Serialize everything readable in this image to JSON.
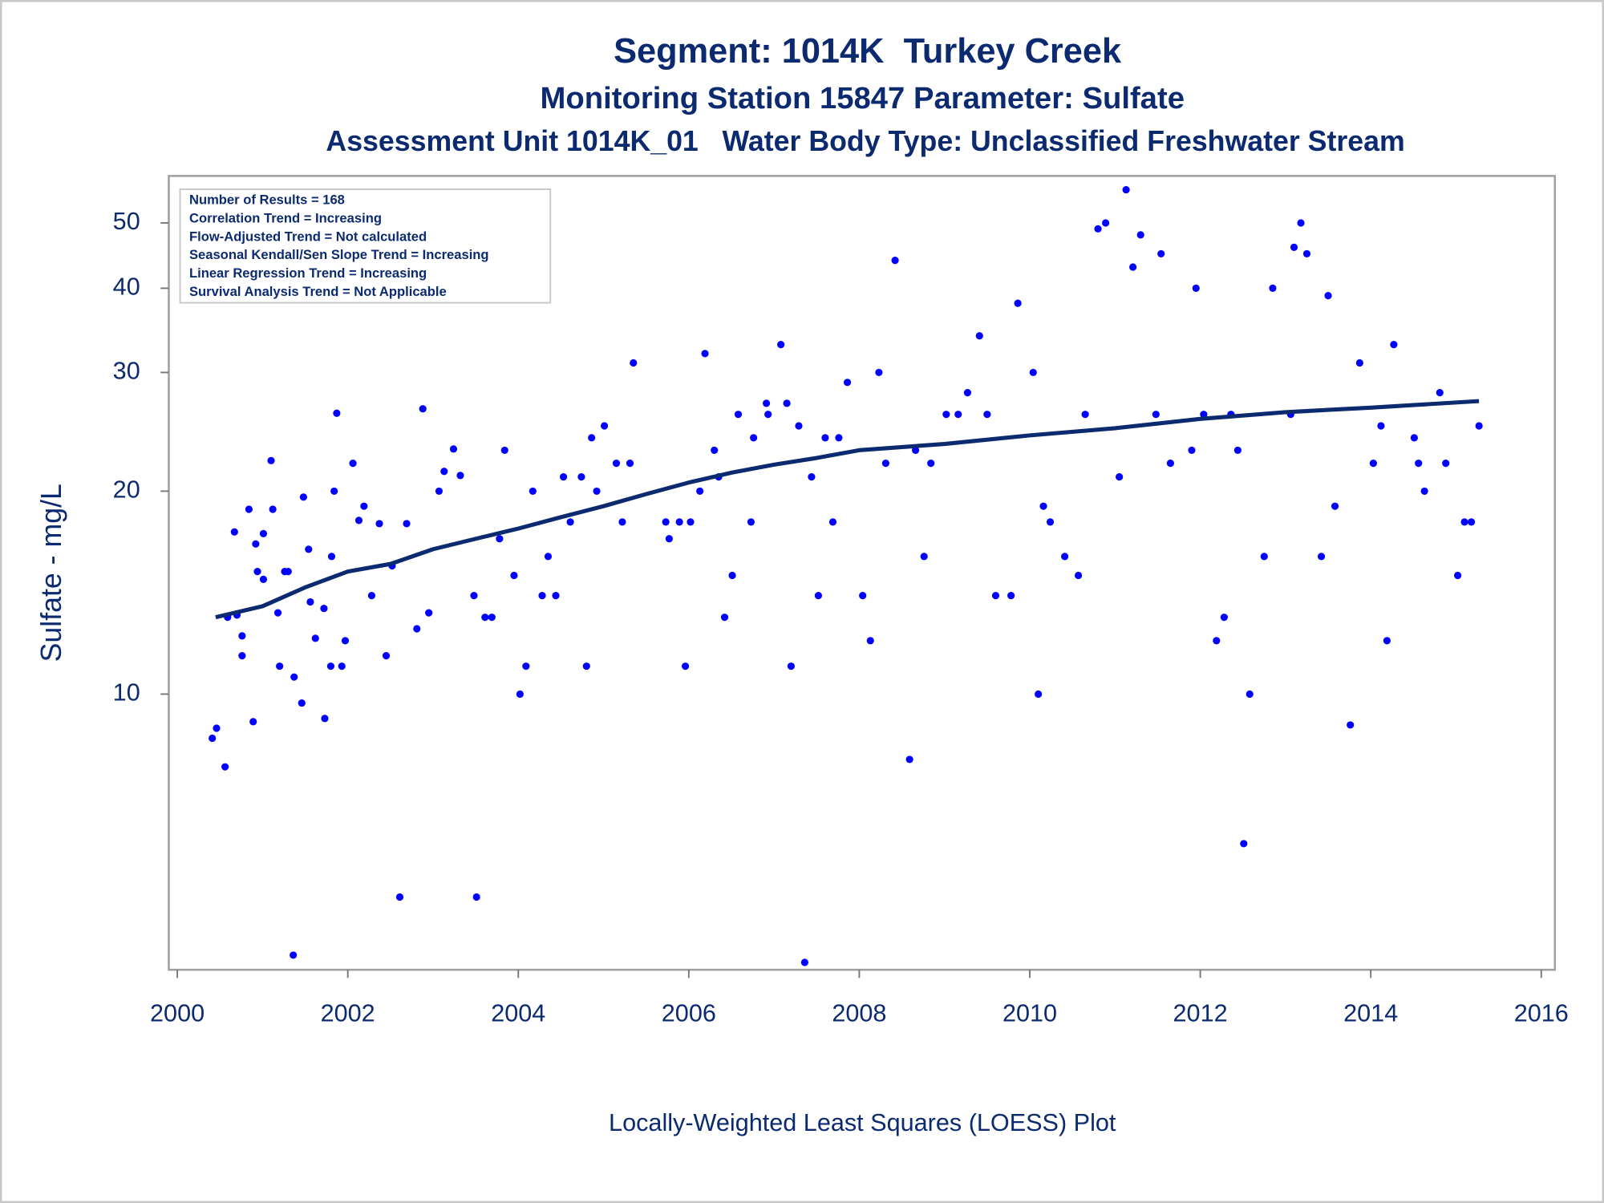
{
  "chart_data": {
    "type": "scatter",
    "titles": [
      "Segment: 1014K  Turkey Creek",
      "Monitoring Station 15847 Parameter: Sulfate",
      "Assessment Unit 1014K_01   Water Body Type: Unclassified Freshwater Stream"
    ],
    "ylabel": "Sulfate - mg/L",
    "xlabel": "Locally-Weighted Least Squares (LOESS) Plot",
    "annotations": [
      "Number of Results = 168",
      "Correlation Trend = Increasing",
      "Flow-Adjusted Trend = Not calculated",
      "Seasonal Kendall/Sen Slope Trend = Increasing",
      "Linear Regression Trend = Increasing",
      "Survival Analysis Trend = Not Applicable"
    ],
    "ylog": true,
    "xlim": [
      1999.9,
      2016.16
    ],
    "ylim": [
      3.9,
      58.7
    ],
    "xticks": [
      2000,
      2002,
      2004,
      2006,
      2008,
      2010,
      2012,
      2014,
      2016
    ],
    "yticks": [
      10,
      20,
      30,
      40,
      50
    ],
    "series": [
      {
        "type": "scatter",
        "color": "#0000ff",
        "x": [
          2000.41,
          2000.46,
          2000.56,
          2000.59,
          2000.67,
          2000.7,
          2000.76,
          2000.76,
          2000.84,
          2000.89,
          2000.92,
          2000.94,
          2001.01,
          2001.01,
          2001.1,
          2001.12,
          2001.18,
          2001.2,
          2001.26,
          2001.3,
          2001.36,
          2001.37,
          2001.46,
          2001.48,
          2001.54,
          2001.56,
          2001.62,
          2001.72,
          2001.73,
          2001.8,
          2001.81,
          2001.84,
          2001.87,
          2001.93,
          2001.97,
          2002.06,
          2002.13,
          2002.19,
          2002.28,
          2002.37,
          2002.45,
          2002.52,
          2002.61,
          2002.69,
          2002.81,
          2002.88,
          2002.95,
          2003.07,
          2003.13,
          2003.24,
          2003.32,
          2003.48,
          2003.51,
          2003.61,
          2003.69,
          2003.78,
          2003.84,
          2003.95,
          2004.02,
          2004.09,
          2004.17,
          2004.28,
          2004.35,
          2004.44,
          2004.53,
          2004.61,
          2004.74,
          2004.8,
          2004.86,
          2004.92,
          2005.01,
          2005.15,
          2005.22,
          2005.31,
          2005.35,
          2005.73,
          2005.77,
          2005.89,
          2005.96,
          2006.02,
          2006.13,
          2006.19,
          2006.3,
          2006.35,
          2006.42,
          2006.51,
          2006.58,
          2006.73,
          2006.76,
          2006.91,
          2006.93,
          2007.08,
          2007.15,
          2007.2,
          2007.29,
          2007.36,
          2007.44,
          2007.52,
          2007.6,
          2007.69,
          2007.76,
          2007.86,
          2008.04,
          2008.13,
          2008.23,
          2008.31,
          2008.42,
          2008.59,
          2008.66,
          2008.76,
          2008.84,
          2009.02,
          2009.16,
          2009.27,
          2009.41,
          2009.5,
          2009.6,
          2009.78,
          2009.86,
          2010.04,
          2010.1,
          2010.16,
          2010.24,
          2010.41,
          2010.57,
          2010.65,
          2010.8,
          2010.89,
          2011.05,
          2011.13,
          2011.21,
          2011.3,
          2011.48,
          2011.54,
          2011.65,
          2011.9,
          2011.95,
          2012.04,
          2012.19,
          2012.28,
          2012.36,
          2012.44,
          2012.51,
          2012.58,
          2012.75,
          2012.85,
          2013.06,
          2013.1,
          2013.18,
          2013.25,
          2013.42,
          2013.5,
          2013.58,
          2013.76,
          2013.87,
          2014.03,
          2014.12,
          2014.19,
          2014.27,
          2014.51,
          2014.56,
          2014.63,
          2014.81,
          2014.88,
          2015.02,
          2015.1,
          2015.18,
          2015.27
        ],
        "values": [
          8.6,
          8.9,
          7.8,
          13,
          17.4,
          13.1,
          12.2,
          11.4,
          18.8,
          9.1,
          16.7,
          15.2,
          14.8,
          17.3,
          22.2,
          18.8,
          13.2,
          11,
          15.2,
          15.2,
          4.1,
          10.6,
          9.7,
          19.6,
          16.4,
          13.7,
          12.1,
          13.4,
          9.2,
          11,
          16,
          20,
          26.1,
          11,
          12,
          22,
          18.1,
          19,
          14,
          17.9,
          11.4,
          15.5,
          5,
          17.9,
          12.5,
          26.5,
          13.2,
          20,
          21.4,
          23.1,
          21.1,
          14,
          5,
          13,
          13,
          17,
          23,
          15,
          10,
          11,
          20,
          14,
          16,
          14,
          21,
          18,
          21,
          11,
          24,
          20,
          25,
          22,
          18,
          22,
          31,
          18,
          17,
          18,
          11,
          18,
          20,
          32,
          23,
          21,
          13,
          15,
          26,
          18,
          24,
          27,
          26,
          33,
          27,
          11,
          25,
          4,
          21,
          14,
          24,
          18,
          24,
          29,
          14,
          12,
          30,
          22,
          44,
          8,
          23,
          16,
          22,
          26,
          26,
          28,
          34,
          26,
          14,
          14,
          38,
          30,
          10,
          19,
          18,
          16,
          15,
          26,
          49,
          50,
          21,
          56,
          43,
          48,
          26,
          45,
          22,
          23,
          40,
          26,
          12,
          13,
          26,
          23,
          6,
          10,
          16,
          40,
          26,
          46,
          50,
          45,
          16,
          39,
          19,
          9,
          31,
          22,
          25,
          12,
          33,
          24,
          22,
          20,
          28,
          22,
          15,
          18,
          18,
          25
        ]
      },
      {
        "type": "line",
        "color": "#0b2a6f",
        "x": [
          2000.45,
          2001,
          2001.5,
          2002,
          2002.5,
          2003,
          2003.5,
          2004,
          2004.5,
          2005,
          2005.5,
          2006,
          2006.5,
          2007,
          2007.5,
          2008,
          2009,
          2010,
          2011,
          2012,
          2013,
          2014,
          2015.27
        ],
        "values": [
          13,
          13.5,
          14.4,
          15.2,
          15.6,
          16.4,
          17,
          17.6,
          18.3,
          19,
          19.8,
          20.6,
          21.3,
          21.9,
          22.4,
          23,
          23.5,
          24.2,
          24.8,
          25.6,
          26.2,
          26.6,
          27.2
        ]
      }
    ]
  }
}
